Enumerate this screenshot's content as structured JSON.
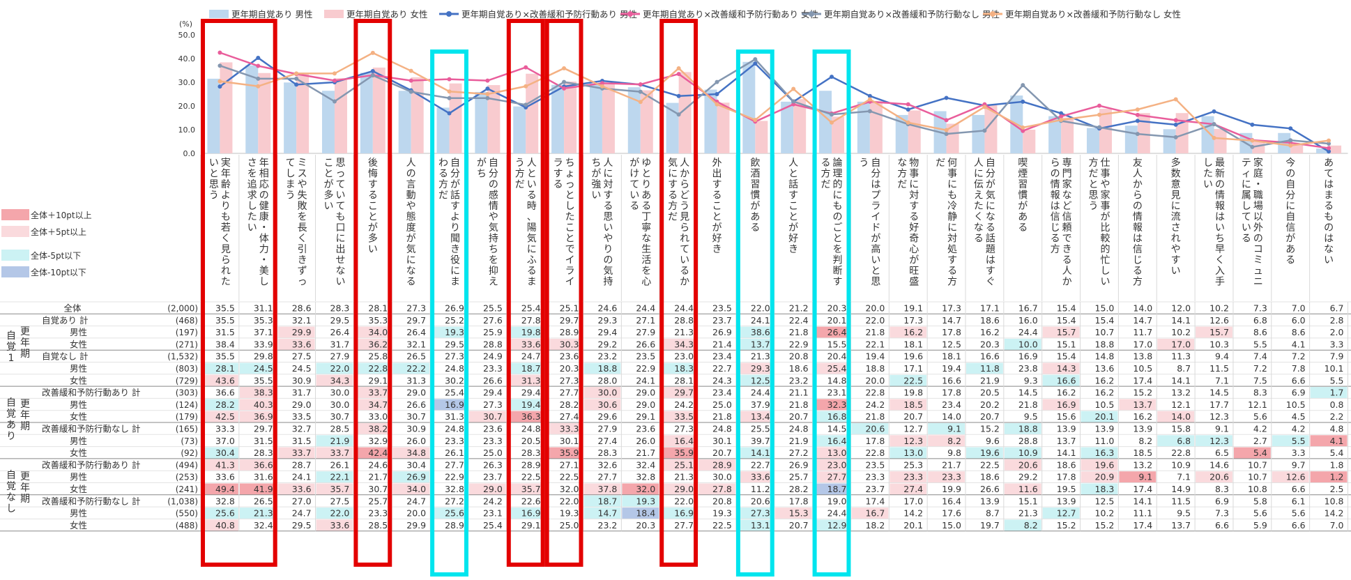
{
  "chart_data": {
    "type": "bar",
    "y_unit_label": "(%)",
    "y_ticks": [
      "0.0",
      "10.0",
      "20.0",
      "30.0",
      "40.0",
      "50.0"
    ],
    "ylim": [
      0,
      50
    ],
    "legend_top": [
      {
        "label": "更年期自覚あり 男性",
        "kind": "bar",
        "color": "#bdd7ee"
      },
      {
        "label": "更年期自覚あり 女性",
        "kind": "bar",
        "color": "#f8cbcf"
      },
      {
        "label": "更年期自覚あり×改善緩和予防行動あり 男性",
        "kind": "line",
        "color": "#4472c4"
      },
      {
        "label": "更年期自覚あり×改善緩和予防行動あり 女性",
        "kind": "line",
        "color": "#e95d9b"
      },
      {
        "label": "更年期自覚あり×改善緩和予防行動なし 男性",
        "kind": "line",
        "color": "#8497b0"
      },
      {
        "label": "更年期自覚あり×改善緩和予防行動なし 女性",
        "kind": "line",
        "color": "#f4b183"
      }
    ],
    "legend_side": [
      {
        "label": "全体＋10pt以上",
        "color": "#f4a6ab"
      },
      {
        "label": "全体＋5pt以上",
        "color": "#fadadd"
      },
      {
        "label": "全体-5pt以下",
        "color": "#ccf2f4"
      },
      {
        "label": "全体-10pt以下",
        "color": "#b4c7e7"
      }
    ],
    "categories": [
      "実年齢よりも若く見られたいと思う",
      "年相応の健康・体力・美しさを追求したい",
      "ミスや失敗を長く引きずってしまう",
      "思っていても口に出せないことが多い",
      "後悔することが多い",
      "人の言動や態度が気になる",
      "自分が話すより聞き役にまわる方だ",
      "自分の感情や気持ちを抑えがち",
      "人といる時、陽気にふるまう方だ",
      "ちょっとしたことでイライラする",
      "人に対する思いやりの気持ちが強い",
      "ゆとりある丁寧な生活を心がけている",
      "人からどう見られているか気にする方だ",
      "外出することが好き",
      "飲酒習慣がある",
      "人と話すことが好き",
      "論理的にものごとを判断する方だ",
      "自分はプライドが高いと思う",
      "物事に対する好奇心が旺盛な方だ",
      "何事にも冷静に対処する方だ",
      "自分が気になる話題はすぐ人に伝えたくなる",
      "喫煙習慣がある",
      "専門家など信頼できる人からの情報は信じる方",
      "仕事や家事が比較的忙しい方だと思う",
      "友人からの情報は信じる方",
      "多数意見に流されやすい",
      "最新の情報はいち早く入手したい",
      "家庭・職場以外のコミュニティに属している",
      "今の自分に自信がある",
      "あてはまるものはない"
    ],
    "series": [
      {
        "name": "更年期自覚あり 男性",
        "values": [
          31.5,
          37.1,
          29.9,
          26.4,
          34.0,
          26.4,
          19.3,
          25.9,
          19.8,
          28.9,
          29.4,
          27.9,
          21.3,
          26.9,
          38.6,
          21.8,
          26.4,
          21.8,
          16.2,
          17.8,
          16.2,
          24.4,
          15.7,
          10.7,
          11.7,
          10.2,
          15.7,
          8.6,
          8.6,
          2.0
        ]
      },
      {
        "name": "更年期自覚あり 女性",
        "values": [
          38.4,
          33.9,
          33.6,
          31.7,
          36.2,
          32.1,
          29.5,
          28.8,
          33.6,
          30.3,
          29.2,
          26.6,
          34.3,
          21.4,
          13.7,
          22.9,
          15.5,
          22.1,
          18.1,
          12.5,
          20.3,
          10.0,
          15.1,
          18.8,
          17.0,
          17.0,
          10.3,
          5.5,
          4.1,
          3.3
        ]
      },
      {
        "name": "更年期自覚あり×改善緩和予防行動あり 男性",
        "values": [
          28.2,
          40.3,
          29.0,
          30.0,
          34.7,
          26.6,
          16.9,
          27.3,
          19.4,
          28.2,
          30.6,
          29.0,
          24.2,
          25.0,
          37.9,
          21.8,
          32.3,
          24.2,
          18.5,
          23.4,
          20.2,
          21.8,
          16.9,
          10.5,
          13.7,
          12.1,
          17.7,
          12.1,
          10.5,
          0.8
        ]
      },
      {
        "name": "更年期自覚あり×改善緩和予防行動あり 女性",
        "values": [
          42.5,
          36.9,
          33.5,
          30.7,
          33.0,
          30.7,
          31.3,
          30.7,
          36.3,
          27.4,
          29.6,
          29.1,
          33.5,
          21.8,
          13.4,
          20.7,
          16.8,
          21.8,
          20.7,
          14.0,
          20.7,
          9.5,
          15.6,
          20.1,
          16.2,
          14.0,
          12.3,
          5.6,
          4.5,
          2.2
        ]
      },
      {
        "name": "更年期自覚あり×改善緩和予防行動なし 男性",
        "values": [
          37.0,
          31.5,
          31.5,
          21.9,
          32.9,
          26.0,
          23.3,
          23.3,
          20.5,
          30.1,
          27.4,
          26.0,
          16.4,
          30.1,
          39.7,
          21.9,
          16.4,
          17.8,
          12.3,
          8.2,
          9.6,
          28.8,
          13.7,
          11.0,
          8.2,
          6.8,
          12.3,
          2.7,
          5.5,
          4.1
        ]
      },
      {
        "name": "更年期自覚あり×改善緩和予防行動なし 女性",
        "values": [
          30.4,
          28.3,
          33.7,
          33.7,
          42.4,
          34.8,
          26.1,
          25.0,
          28.3,
          35.9,
          28.3,
          21.7,
          35.9,
          20.7,
          14.1,
          27.2,
          13.0,
          22.8,
          13.0,
          9.8,
          19.6,
          10.9,
          14.1,
          16.3,
          18.5,
          22.8,
          6.5,
          5.4,
          3.3,
          5.4
        ]
      }
    ],
    "table": {
      "header_label": "全体",
      "group_labels": [
        {
          "label": "自覚1",
          "sub": "更年期"
        },
        {
          "label": "自覚あり",
          "sub": "更年期"
        },
        {
          "label": "自覚なし",
          "sub": "更年期"
        }
      ],
      "rows": [
        {
          "label": "全体",
          "n": "(2,000)",
          "hl": "",
          "values": [
            35.5,
            31.1,
            28.6,
            28.3,
            28.1,
            27.3,
            26.9,
            25.5,
            25.4,
            25.1,
            24.6,
            24.4,
            24.4,
            23.5,
            22.0,
            21.2,
            20.3,
            20.0,
            19.1,
            17.3,
            17.1,
            16.7,
            15.4,
            15.0,
            14.0,
            12.0,
            10.2,
            7.3,
            7.0,
            6.7
          ],
          "styles": ""
        },
        {
          "label": "自覚あり 計",
          "n": "(468)",
          "values": [
            35.5,
            35.3,
            32.1,
            29.5,
            35.3,
            29.7,
            25.2,
            27.6,
            27.8,
            29.7,
            29.3,
            27.1,
            28.8,
            23.7,
            24.1,
            22.4,
            20.1,
            22.0,
            17.3,
            14.7,
            18.6,
            16.0,
            15.4,
            15.4,
            14.7,
            14.1,
            12.6,
            6.8,
            6.0,
            2.8
          ],
          "styles": ""
        },
        {
          "label": "男性",
          "n": "(197)",
          "values": [
            31.5,
            37.1,
            29.9,
            26.4,
            34.0,
            26.4,
            19.3,
            25.9,
            19.8,
            28.9,
            29.4,
            27.9,
            21.3,
            26.9,
            38.6,
            21.8,
            26.4,
            21.8,
            16.2,
            17.8,
            16.2,
            24.4,
            15.7,
            10.7,
            11.7,
            10.2,
            15.7,
            8.6,
            8.6,
            2.0
          ],
          "styles": "..p.p.c.c.....c.P.p...p...p...."
        },
        {
          "label": "女性",
          "n": "(271)",
          "values": [
            38.4,
            33.9,
            33.6,
            31.7,
            36.2,
            32.1,
            29.5,
            28.8,
            33.6,
            30.3,
            29.2,
            26.6,
            34.3,
            21.4,
            13.7,
            22.9,
            15.5,
            22.1,
            18.1,
            12.5,
            20.3,
            10.0,
            15.1,
            18.8,
            17.0,
            17.0,
            10.3,
            5.5,
            4.1,
            3.3
          ],
          "styles": "..p.p...pp..p.c......c...p....."
        },
        {
          "label": "自覚なし 計",
          "n": "(1,532)",
          "values": [
            35.5,
            29.8,
            27.5,
            27.9,
            25.8,
            26.5,
            27.3,
            24.9,
            24.7,
            23.6,
            23.2,
            23.5,
            23.0,
            23.4,
            21.3,
            20.8,
            20.4,
            19.4,
            19.6,
            18.1,
            16.6,
            16.9,
            15.4,
            14.8,
            13.8,
            11.3,
            9.4,
            7.4,
            7.2,
            7.9
          ],
          "styles": ""
        },
        {
          "label": "男性",
          "n": "(803)",
          "values": [
            28.1,
            24.5,
            24.5,
            22.0,
            22.8,
            22.2,
            24.8,
            23.3,
            18.7,
            20.3,
            18.8,
            22.9,
            18.3,
            22.7,
            29.3,
            18.6,
            25.4,
            18.8,
            17.1,
            19.4,
            11.8,
            23.8,
            14.3,
            13.6,
            10.5,
            8.7,
            11.5,
            7.2,
            7.8,
            10.1
          ],
          "styles": "cc.ccc..c.c.c.p.p...c.p......."
        },
        {
          "label": "女性",
          "n": "(729)",
          "values": [
            43.6,
            35.5,
            30.9,
            34.3,
            29.1,
            31.3,
            30.2,
            26.6,
            31.3,
            27.3,
            28.0,
            24.1,
            28.1,
            24.3,
            12.5,
            23.2,
            14.8,
            20.0,
            22.5,
            16.6,
            21.9,
            9.3,
            16.6,
            16.2,
            17.4,
            14.1,
            7.1,
            7.5,
            6.6,
            5.5
          ],
          "styles": "p..p....p.....c...c...c........"
        },
        {
          "label": "改善緩和予防行動あり 計",
          "n": "(303)",
          "values": [
            36.6,
            38.3,
            31.7,
            30.0,
            33.7,
            29.0,
            25.4,
            29.4,
            29.4,
            27.7,
            30.0,
            29.0,
            29.7,
            23.4,
            24.4,
            21.1,
            23.1,
            22.8,
            19.8,
            17.8,
            20.5,
            14.5,
            16.2,
            16.2,
            15.2,
            13.2,
            14.5,
            8.3,
            6.9,
            1.7
          ],
          "styles": ".p..p.....p.p................c"
        },
        {
          "label": "男性",
          "n": "(124)",
          "values": [
            28.2,
            40.3,
            29.0,
            30.0,
            34.7,
            26.6,
            16.9,
            27.3,
            19.4,
            28.2,
            30.6,
            29.0,
            24.2,
            25.0,
            37.9,
            21.8,
            32.3,
            24.2,
            18.5,
            23.4,
            20.2,
            21.8,
            16.9,
            10.5,
            13.7,
            12.1,
            17.7,
            12.1,
            10.5,
            0.8
          ],
          "styles": "cp..p.C.c.p.....P.p...p.p......p...c"
        },
        {
          "label": "女性",
          "n": "(179)",
          "values": [
            42.5,
            36.9,
            33.5,
            30.7,
            33.0,
            30.7,
            31.3,
            30.7,
            36.3,
            27.4,
            29.6,
            29.1,
            33.5,
            21.8,
            13.4,
            20.7,
            16.8,
            21.8,
            20.7,
            14.0,
            20.7,
            9.5,
            15.6,
            20.1,
            16.2,
            14.0,
            12.3,
            5.6,
            4.5,
            2.2
          ],
          "styles": "pp.....pP...p.p.c......c.p......."
        },
        {
          "label": "改善緩和予防行動なし 計",
          "n": "(165)",
          "values": [
            33.3,
            29.7,
            32.7,
            28.5,
            38.2,
            30.9,
            24.8,
            23.6,
            24.8,
            33.3,
            27.9,
            23.6,
            27.3,
            24.8,
            25.5,
            24.8,
            14.5,
            20.6,
            12.7,
            9.1,
            15.2,
            18.8,
            13.9,
            13.9,
            13.9,
            15.8,
            9.1,
            4.2,
            4.2,
            4.8
          ],
          "styles": "....p....p.......c.c.c.........c...."
        },
        {
          "label": "男性",
          "n": "(73)",
          "values": [
            37.0,
            31.5,
            31.5,
            21.9,
            32.9,
            26.0,
            23.3,
            23.3,
            20.5,
            30.1,
            27.4,
            26.0,
            16.4,
            30.1,
            39.7,
            21.9,
            16.4,
            17.8,
            12.3,
            8.2,
            9.6,
            28.8,
            13.7,
            11.0,
            8.2,
            6.8,
            12.3,
            2.7,
            5.5,
            4.1
          ],
          "styles": "...c........p...c.pp.....cc.cP...cc"
        },
        {
          "label": "女性",
          "n": "(92)",
          "values": [
            30.4,
            28.3,
            33.7,
            33.7,
            42.4,
            34.8,
            26.1,
            25.0,
            28.3,
            35.9,
            28.3,
            21.7,
            35.9,
            20.7,
            14.1,
            27.2,
            13.0,
            22.8,
            13.0,
            9.8,
            19.6,
            10.9,
            14.1,
            16.3,
            18.5,
            22.8,
            6.5,
            5.4,
            3.3,
            5.4
          ],
          "styles": "c.ppPp...P..P.c.p.c.cc.c...P...."
        },
        {
          "label": "改善緩和予防行動あり 計",
          "n": "(494)",
          "values": [
            41.3,
            36.6,
            28.7,
            26.1,
            24.6,
            30.4,
            27.7,
            26.3,
            28.9,
            27.1,
            32.6,
            32.4,
            25.1,
            28.9,
            22.7,
            26.9,
            23.0,
            23.5,
            25.3,
            21.7,
            22.5,
            20.6,
            18.6,
            19.6,
            13.2,
            10.9,
            14.6,
            10.7,
            9.7,
            1.8
          ],
          "styles": "pp..........pp..p....p.p........"
        },
        {
          "label": "男性",
          "n": "(253)",
          "values": [
            33.6,
            31.6,
            24.1,
            22.1,
            21.7,
            26.9,
            22.9,
            23.7,
            22.5,
            22.5,
            27.7,
            32.8,
            21.3,
            30.0,
            33.6,
            25.7,
            27.7,
            23.3,
            23.3,
            23.3,
            18.6,
            29.2,
            17.8,
            20.9,
            9.1,
            7.1,
            20.6,
            10.7,
            12.6,
            1.2
          ],
          "styles": "...c.c........p.p.pp...pP.p.pPpp..P.pc"
        },
        {
          "label": "女性",
          "n": "(241)",
          "values": [
            49.4,
            41.9,
            33.6,
            35.7,
            30.7,
            34.0,
            32.8,
            29.0,
            35.7,
            32.0,
            37.8,
            32.0,
            29.0,
            27.8,
            11.2,
            28.2,
            18.7,
            23.7,
            27.4,
            19.9,
            26.6,
            11.6,
            19.5,
            18.3,
            17.4,
            14.9,
            8.3,
            10.8,
            6.6,
            2.5
          ],
          "styles": "PPpp.p.pp.pPpp..C.p..p.c........"
        },
        {
          "label": "改善緩和予防行動なし 計",
          "n": "(1,038)",
          "values": [
            32.8,
            26.5,
            27.0,
            27.5,
            25.7,
            24.7,
            27.2,
            24.2,
            22.6,
            22.0,
            18.7,
            19.3,
            22.0,
            20.8,
            20.6,
            17.8,
            19.0,
            17.4,
            17.0,
            16.4,
            13.9,
            15.1,
            13.9,
            12.5,
            14.1,
            11.5,
            6.9,
            5.8,
            6.1,
            10.8
          ],
          "styles": "..........cc.........................."
        },
        {
          "label": "男性",
          "n": "(550)",
          "values": [
            25.6,
            21.3,
            24.7,
            22.0,
            23.3,
            20.0,
            25.6,
            23.1,
            16.9,
            19.3,
            14.7,
            18.4,
            16.9,
            19.3,
            27.3,
            15.3,
            24.4,
            16.7,
            14.2,
            17.6,
            8.7,
            21.3,
            12.7,
            10.2,
            11.1,
            9.5,
            7.3,
            5.6,
            5.6,
            14.2
          ],
          "styles": "cc.c..c.c.cCc.cp.p....c.......p"
        },
        {
          "label": "女性",
          "n": "(488)",
          "values": [
            40.8,
            32.4,
            29.5,
            33.6,
            28.5,
            29.9,
            28.9,
            25.4,
            29.1,
            25.0,
            23.2,
            20.3,
            27.7,
            22.5,
            13.1,
            20.7,
            12.9,
            18.2,
            20.1,
            15.0,
            19.7,
            8.2,
            15.2,
            15.2,
            17.4,
            13.7,
            6.6,
            5.9,
            6.6,
            7.0
          ],
          "styles": "p..p..........c.c....c........."
        }
      ]
    }
  }
}
